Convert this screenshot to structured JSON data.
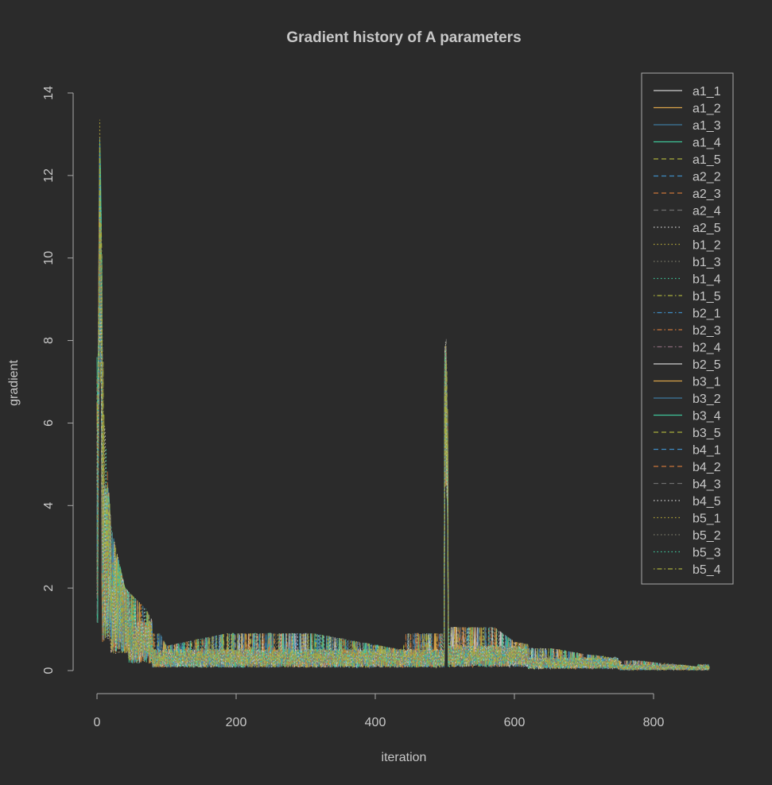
{
  "chart_data": {
    "type": "line",
    "title": "Gradient history of A parameters",
    "xlabel": "iteration",
    "ylabel": "gradient",
    "xlim": [
      0,
      880
    ],
    "ylim": [
      0,
      14
    ],
    "x_ticks": [
      "0",
      "200",
      "400",
      "600",
      "800"
    ],
    "y_ticks": [
      "0",
      "2",
      "4",
      "6",
      "8",
      "10",
      "12",
      "14"
    ],
    "grid": false,
    "legend_position": "top-right",
    "n_iterations": 880,
    "series": [
      {
        "name": "a1_1",
        "color": "#d0d0d0",
        "dash": "solid"
      },
      {
        "name": "a1_2",
        "color": "#d9a34a",
        "dash": "solid"
      },
      {
        "name": "a1_3",
        "color": "#3d7a9e",
        "dash": "solid"
      },
      {
        "name": "a1_4",
        "color": "#3fc79a",
        "dash": "solid"
      },
      {
        "name": "a1_5",
        "color": "#a9ae3c",
        "dash": "dashed"
      },
      {
        "name": "a2_2",
        "color": "#3f8cc4",
        "dash": "dashed"
      },
      {
        "name": "a2_3",
        "color": "#c9753a",
        "dash": "dashed"
      },
      {
        "name": "a2_4",
        "color": "#6e6e6e",
        "dash": "dashed"
      },
      {
        "name": "a2_5",
        "color": "#d0d0d0",
        "dash": "dotted"
      },
      {
        "name": "b1_2",
        "color": "#b3a63a",
        "dash": "dotted"
      },
      {
        "name": "b1_3",
        "color": "#7a7a6a",
        "dash": "dotted"
      },
      {
        "name": "b1_4",
        "color": "#3fc79a",
        "dash": "dotted"
      },
      {
        "name": "b1_5",
        "color": "#a9ae3c",
        "dash": "dotdash"
      },
      {
        "name": "b2_1",
        "color": "#3f8cc4",
        "dash": "dotdash"
      },
      {
        "name": "b2_3",
        "color": "#c9753a",
        "dash": "dotdash"
      },
      {
        "name": "b2_4",
        "color": "#8a6a7a",
        "dash": "dotdash"
      },
      {
        "name": "b2_5",
        "color": "#d0d0d0",
        "dash": "solid"
      },
      {
        "name": "b3_1",
        "color": "#d9a34a",
        "dash": "solid"
      },
      {
        "name": "b3_2",
        "color": "#3d7a9e",
        "dash": "solid"
      },
      {
        "name": "b3_4",
        "color": "#3fc79a",
        "dash": "solid"
      },
      {
        "name": "b3_5",
        "color": "#a9ae3c",
        "dash": "dashed"
      },
      {
        "name": "b4_1",
        "color": "#3f8cc4",
        "dash": "dashed"
      },
      {
        "name": "b4_2",
        "color": "#c9753a",
        "dash": "dashed"
      },
      {
        "name": "b4_3",
        "color": "#6e6e6e",
        "dash": "dashed"
      },
      {
        "name": "b4_5",
        "color": "#d0d0d0",
        "dash": "dotted"
      },
      {
        "name": "b5_1",
        "color": "#b3a63a",
        "dash": "dotted"
      },
      {
        "name": "b5_2",
        "color": "#7a7a6a",
        "dash": "dotted"
      },
      {
        "name": "b5_3",
        "color": "#3fc79a",
        "dash": "dotted"
      },
      {
        "name": "b5_4",
        "color": "#a9ae3c",
        "dash": "dotdash"
      }
    ],
    "key_points": [
      {
        "x": 0,
        "y": 4.0
      },
      {
        "x": 4,
        "y": 13.9
      },
      {
        "x": 10,
        "y": 6.2
      },
      {
        "x": 20,
        "y": 3.5
      },
      {
        "x": 40,
        "y": 2.0
      },
      {
        "x": 70,
        "y": 1.5
      },
      {
        "x": 100,
        "y": 0.6
      },
      {
        "x": 215,
        "y": 1.0
      },
      {
        "x": 248,
        "y": 1.1
      },
      {
        "x": 440,
        "y": 0.5
      },
      {
        "x": 502,
        "y": 8.1
      },
      {
        "x": 510,
        "y": 1.3
      },
      {
        "x": 535,
        "y": 1.5
      },
      {
        "x": 600,
        "y": 0.7
      },
      {
        "x": 700,
        "y": 0.4
      },
      {
        "x": 800,
        "y": 0.2
      },
      {
        "x": 880,
        "y": 0.05
      }
    ]
  }
}
